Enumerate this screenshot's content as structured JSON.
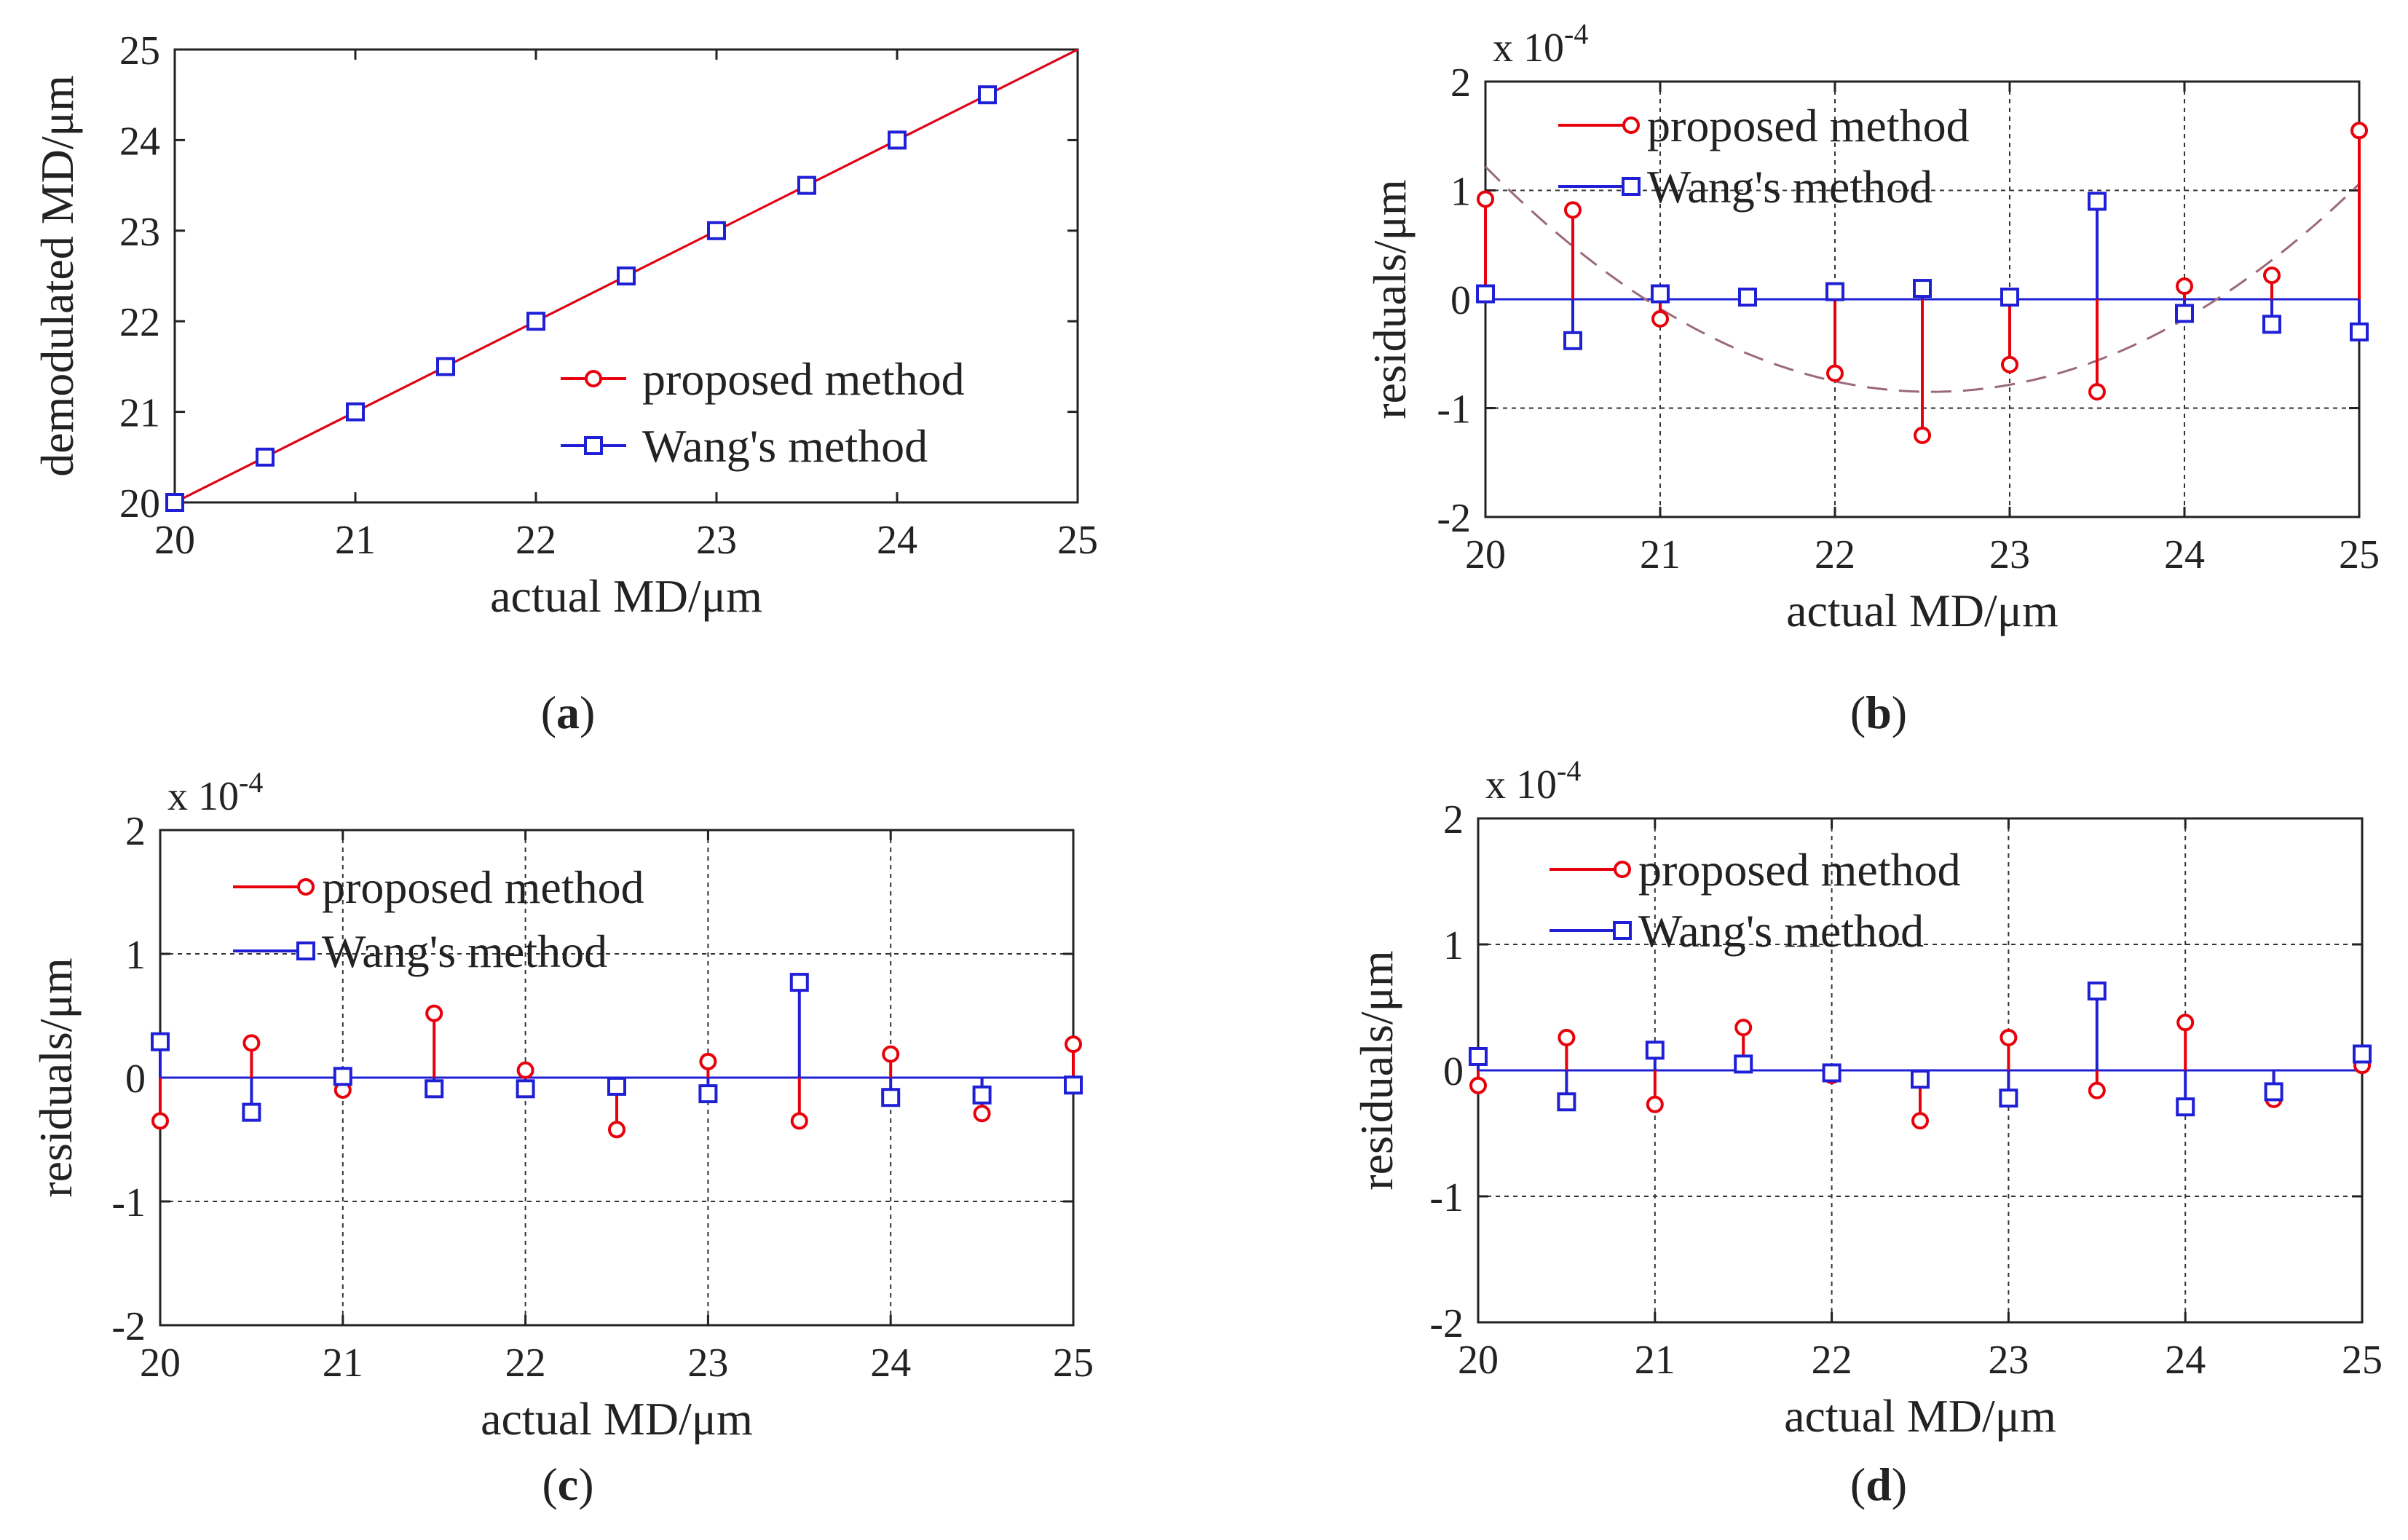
{
  "chart_data": [
    {
      "panel": "a",
      "caption": "(a)",
      "type": "line",
      "xlabel": "actual MD/μm",
      "ylabel": "demodulated MD/μm",
      "xlim": [
        20,
        25
      ],
      "ylim": [
        20,
        25
      ],
      "xticks": [
        20,
        21,
        22,
        23,
        24,
        25
      ],
      "yticks": [
        20,
        21,
        22,
        23,
        24,
        25
      ],
      "grid": false,
      "legend_position": "lower-right",
      "x": [
        20,
        20.5,
        21,
        21.5,
        22,
        22.5,
        23,
        23.5,
        24,
        24.5,
        25
      ],
      "series": [
        {
          "name": "proposed method",
          "color": "#e8000b",
          "marker": "circle",
          "values": [
            20,
            20.5,
            21,
            21.5,
            22,
            22.5,
            23,
            23.5,
            24,
            24.5,
            25
          ]
        },
        {
          "name": "Wang's method",
          "color": "#1f1fd6",
          "marker": "square",
          "values": [
            20,
            20.5,
            21,
            21.5,
            22,
            22.5,
            23,
            23.5,
            24,
            24.5,
            25
          ]
        }
      ]
    },
    {
      "panel": "b",
      "caption": "(b)",
      "type": "stem",
      "scale_label": "x 10",
      "scale_exponent": "-4",
      "xlabel": "actual MD/μm",
      "ylabel": "residuals/μm",
      "xlim": [
        20,
        25
      ],
      "ylim": [
        -2,
        2
      ],
      "xticks": [
        20,
        21,
        22,
        23,
        24,
        25
      ],
      "yticks": [
        -2,
        -1,
        0,
        1,
        2
      ],
      "grid": true,
      "legend_position": "top",
      "x": [
        20,
        20.5,
        21,
        21.5,
        22,
        22.5,
        23,
        23.5,
        24,
        24.5,
        25
      ],
      "series": [
        {
          "name": "proposed method",
          "color": "#e8000b",
          "marker": "circle",
          "values": [
            0.92,
            0.82,
            -0.18,
            0.02,
            -0.68,
            -1.25,
            -0.6,
            -0.85,
            0.12,
            0.22,
            1.55
          ]
        },
        {
          "name": "Wang's method",
          "color": "#1f1fd6",
          "marker": "square",
          "values": [
            0.05,
            -0.38,
            0.05,
            0.02,
            0.07,
            0.1,
            0.02,
            0.9,
            -0.13,
            -0.23,
            -0.3
          ]
        }
      ],
      "trend": {
        "color": "#9a6a7a",
        "style": "dashed",
        "vertex_x": 22.55,
        "vertex_y": -0.85,
        "curvature": 0.318
      }
    },
    {
      "panel": "c",
      "caption": "(c)",
      "type": "stem",
      "scale_label": "x 10",
      "scale_exponent": "-4",
      "xlabel": "actual MD/μm",
      "ylabel": "residuals/μm",
      "xlim": [
        20,
        25
      ],
      "ylim": [
        -2,
        2
      ],
      "xticks": [
        20,
        21,
        22,
        23,
        24,
        25
      ],
      "yticks": [
        -2,
        -1,
        0,
        1,
        2
      ],
      "grid": true,
      "legend_position": "top",
      "x": [
        20,
        20.5,
        21,
        21.5,
        22,
        22.5,
        23,
        23.5,
        24,
        24.5,
        25
      ],
      "series": [
        {
          "name": "proposed method",
          "color": "#e8000b",
          "marker": "circle",
          "values": [
            -0.35,
            0.28,
            -0.1,
            0.52,
            0.06,
            -0.42,
            0.13,
            -0.35,
            0.19,
            -0.29,
            0.27
          ]
        },
        {
          "name": "Wang's method",
          "color": "#1f1fd6",
          "marker": "square",
          "values": [
            0.29,
            -0.28,
            0.01,
            -0.09,
            -0.09,
            -0.07,
            -0.13,
            0.77,
            -0.16,
            -0.14,
            -0.06
          ]
        }
      ]
    },
    {
      "panel": "d",
      "caption": "(d)",
      "type": "stem",
      "scale_label": "x 10",
      "scale_exponent": "-4",
      "xlabel": "actual MD/μm",
      "ylabel": "residuals/μm",
      "xlim": [
        20,
        25
      ],
      "ylim": [
        -2,
        2
      ],
      "xticks": [
        20,
        21,
        22,
        23,
        24,
        25
      ],
      "yticks": [
        -2,
        -1,
        0,
        1,
        2
      ],
      "grid": true,
      "legend_position": "top",
      "x": [
        20,
        20.5,
        21,
        21.5,
        22,
        22.5,
        23,
        23.5,
        24,
        24.5,
        25
      ],
      "series": [
        {
          "name": "proposed method",
          "color": "#e8000b",
          "marker": "circle",
          "values": [
            -0.12,
            0.26,
            -0.27,
            0.34,
            -0.04,
            -0.4,
            0.26,
            -0.16,
            0.38,
            -0.23,
            0.04
          ]
        },
        {
          "name": "Wang's method",
          "color": "#1f1fd6",
          "marker": "square",
          "values": [
            0.11,
            -0.25,
            0.16,
            0.05,
            -0.02,
            -0.07,
            -0.22,
            0.63,
            -0.29,
            -0.17,
            0.13
          ]
        }
      ]
    }
  ]
}
